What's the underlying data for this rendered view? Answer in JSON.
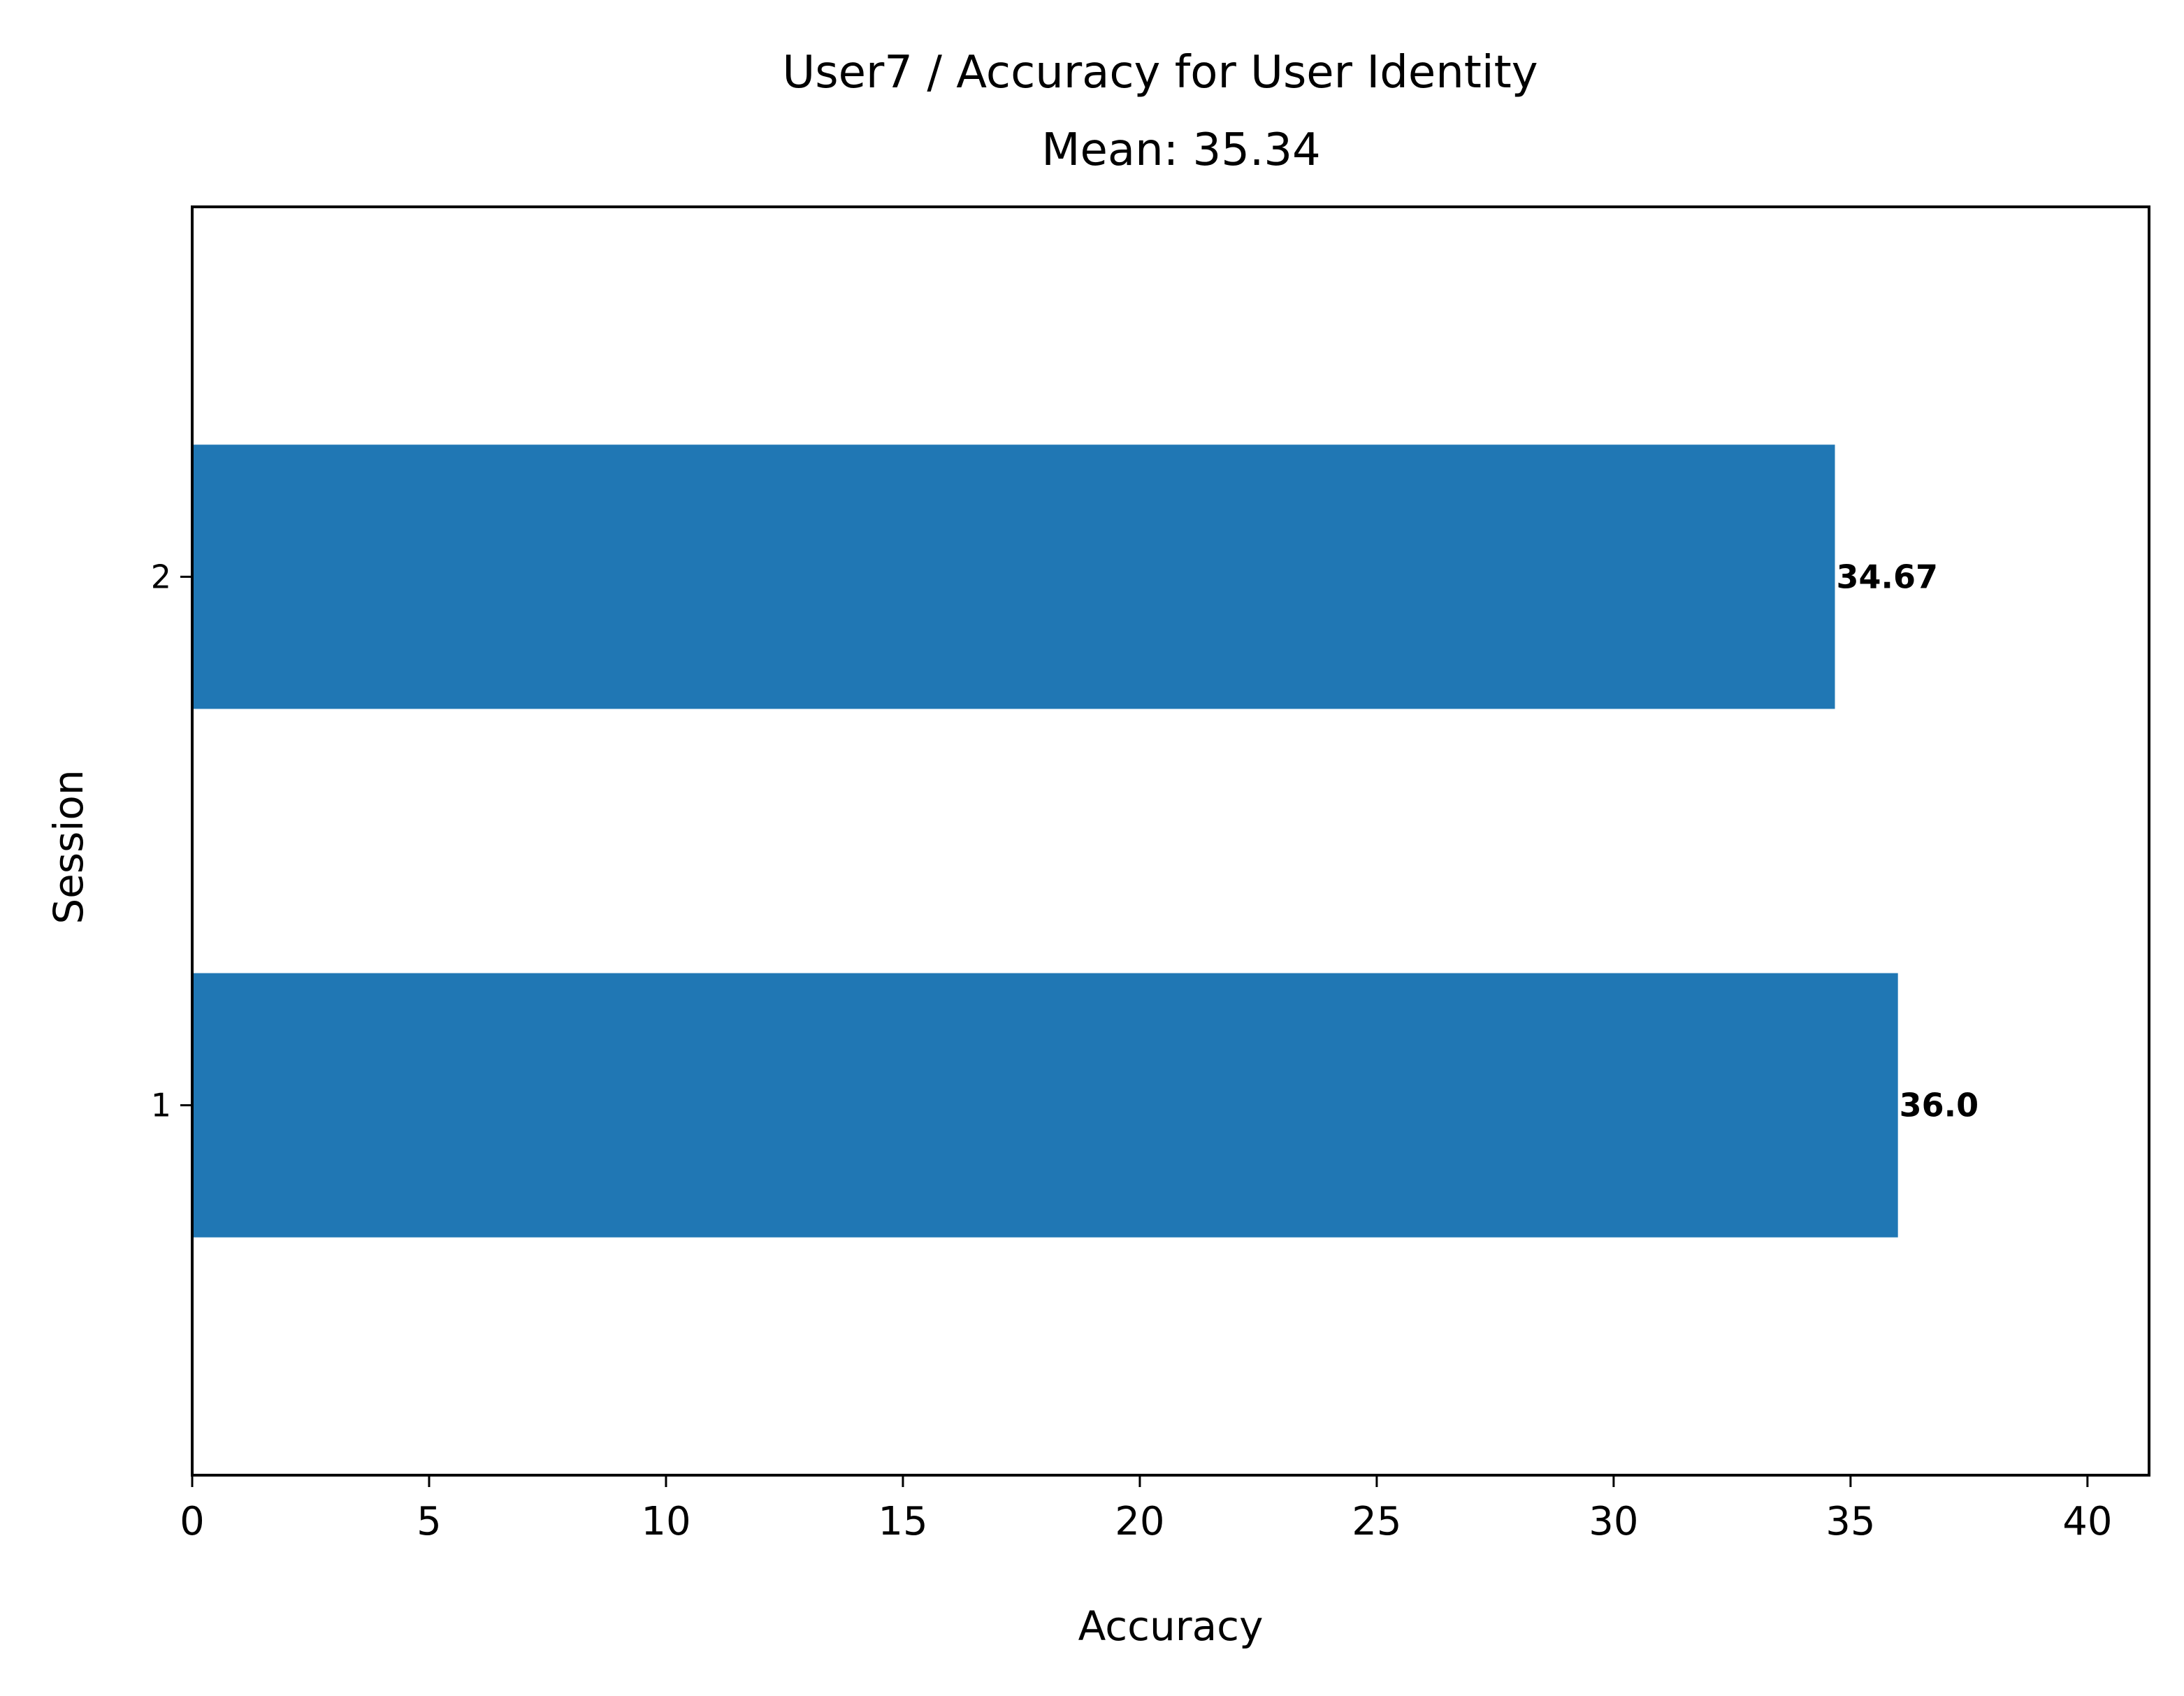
{
  "chart_data": {
    "type": "bar",
    "orientation": "horizontal",
    "title": "User7 / Accuracy for User Identity",
    "subtitle": "Mean: 35.34",
    "xlabel": "Accuracy",
    "ylabel": "Session",
    "categories": [
      "1",
      "2"
    ],
    "values": [
      36.0,
      34.67
    ],
    "data_labels": [
      "36.0",
      "34.67"
    ],
    "xlim": [
      0,
      41.3
    ],
    "xticks": [
      0,
      5,
      10,
      15,
      20,
      25,
      30,
      35,
      40
    ],
    "xtick_labels": [
      "0",
      "5",
      "10",
      "15",
      "20",
      "25",
      "30",
      "35",
      "40"
    ],
    "grid": false,
    "bar_color": "#2077b4"
  }
}
